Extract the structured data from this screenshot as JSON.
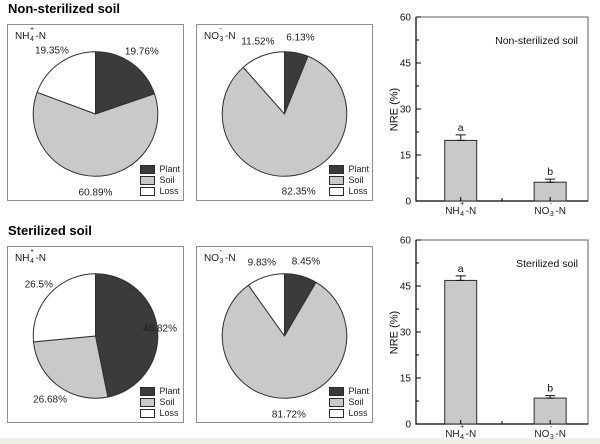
{
  "sections": [
    {
      "title": "Non-sterilized soil"
    },
    {
      "title": "Sterilized soil"
    }
  ],
  "ions": {
    "nh4": {
      "base": "NH",
      "sub": "4",
      "sup": "+",
      "post": "-N"
    },
    "no3": {
      "base": "NO",
      "sub": "3",
      "sup": "-",
      "post": "-N"
    }
  },
  "legend_labels": [
    "Plant",
    "Soil",
    "Loss"
  ],
  "colors": {
    "Plant": "#3b3b3b",
    "Soil": "#c9c9c9",
    "Loss": "#ffffff",
    "bar_fill": "#c9c9c9",
    "slice_edge": "#2e2e2e",
    "bar_edge": "#2b2b2b",
    "panel_border": "#8f8f8f",
    "box_border": "#5f5f5f",
    "axis": "#000000"
  },
  "chart_data": [
    {
      "type": "pie",
      "panel": "pie0",
      "group": "Non-sterilized soil",
      "ion": "nh4",
      "slices": [
        {
          "name": "Plant",
          "value": 19.76,
          "label": "19.76%"
        },
        {
          "name": "Soil",
          "value": 60.89,
          "label": "60.89%"
        },
        {
          "name": "Loss",
          "value": 19.35,
          "label": "19.35%"
        }
      ],
      "legend": [
        "Plant",
        "Soil",
        "Loss"
      ]
    },
    {
      "type": "pie",
      "panel": "pie1",
      "group": "Non-sterilized soil",
      "ion": "no3",
      "slices": [
        {
          "name": "Plant",
          "value": 6.13,
          "label": "6.13%"
        },
        {
          "name": "Soil",
          "value": 82.35,
          "label": "82.35%"
        },
        {
          "name": "Loss",
          "value": 11.52,
          "label": "11.52%"
        }
      ],
      "legend": [
        "Plant",
        "Soil",
        "Loss"
      ]
    },
    {
      "type": "bar",
      "panel": "bar0",
      "annotation": "Non-sterilized soil",
      "ylabel": "NRE (%)",
      "ylim": [
        0,
        60
      ],
      "yticks": [
        0,
        15,
        30,
        45,
        60
      ],
      "minor_step": 7.5,
      "categories": [
        "nh4",
        "no3"
      ],
      "values": [
        19.76,
        6.13
      ],
      "errors": [
        1.8,
        1.0
      ],
      "sig_letters": [
        "a",
        "b"
      ]
    },
    {
      "type": "pie",
      "panel": "pie2",
      "group": "Sterilized soil",
      "ion": "nh4",
      "slices": [
        {
          "name": "Plant",
          "value": 46.82,
          "label": "46.82%"
        },
        {
          "name": "Soil",
          "value": 26.68,
          "label": "26.68%"
        },
        {
          "name": "Loss",
          "value": 26.5,
          "label": "26.5%"
        }
      ],
      "legend": [
        "Plant",
        "Soil",
        "Loss"
      ]
    },
    {
      "type": "pie",
      "panel": "pie3",
      "group": "Sterilized soil",
      "ion": "no3",
      "slices": [
        {
          "name": "Plant",
          "value": 8.45,
          "label": "8.45%"
        },
        {
          "name": "Soil",
          "value": 81.72,
          "label": "81.72%"
        },
        {
          "name": "Loss",
          "value": 9.83,
          "label": "9.83%"
        }
      ],
      "legend": [
        "Plant",
        "Soil",
        "Loss"
      ]
    },
    {
      "type": "bar",
      "panel": "bar1",
      "annotation": "Sterilized soil",
      "ylabel": "NRE (%)",
      "ylim": [
        0,
        60
      ],
      "yticks": [
        0,
        15,
        30,
        45,
        60
      ],
      "minor_step": 7.5,
      "categories": [
        "nh4",
        "no3"
      ],
      "values": [
        46.82,
        8.45
      ],
      "errors": [
        1.5,
        0.8
      ],
      "sig_letters": [
        "a",
        "b"
      ]
    }
  ]
}
